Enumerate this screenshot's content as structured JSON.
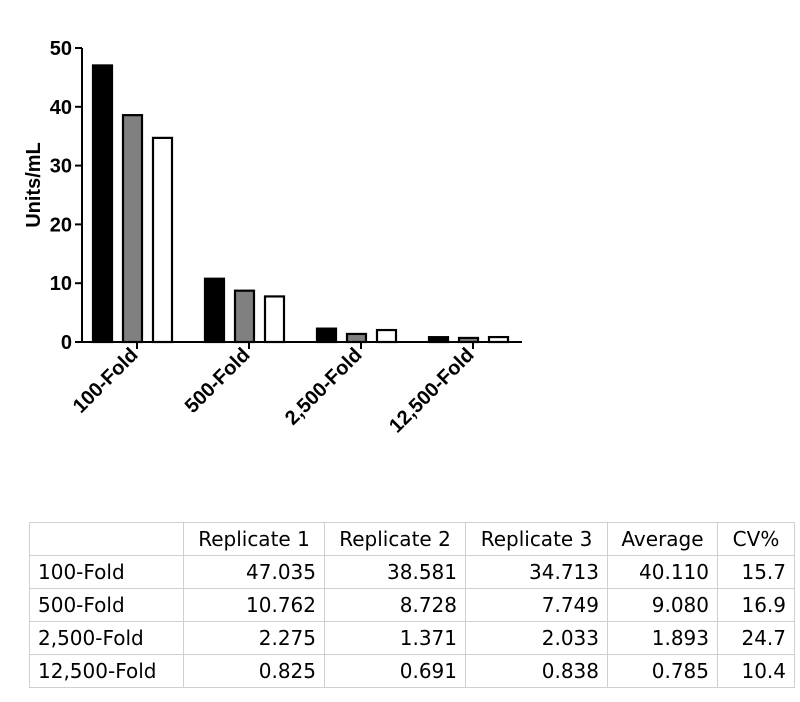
{
  "chart_data": {
    "type": "bar",
    "ylabel": "Units/mL",
    "ylim": [
      0,
      50
    ],
    "yticks": [
      0,
      10,
      20,
      30,
      40,
      50
    ],
    "categories": [
      "100-Fold",
      "500-Fold",
      "2,500-Fold",
      "12,500-Fold"
    ],
    "series": [
      {
        "values": [
          47.035,
          10.762,
          2.275,
          0.825
        ],
        "fill": "#000000"
      },
      {
        "values": [
          38.581,
          8.728,
          1.371,
          0.691
        ],
        "fill": "#808080"
      },
      {
        "values": [
          34.713,
          7.749,
          2.033,
          0.838
        ],
        "fill": "#ffffff"
      }
    ]
  },
  "table": {
    "headers": [
      "",
      "Replicate 1",
      "Replicate 2",
      "Replicate 3",
      "Average",
      "CV%"
    ],
    "rows": [
      [
        "100-Fold",
        "47.035",
        "38.581",
        "34.713",
        "40.110",
        "15.7"
      ],
      [
        "500-Fold",
        "10.762",
        "8.728",
        "7.749",
        "9.080",
        "16.9"
      ],
      [
        "2,500-Fold",
        "2.275",
        "1.371",
        "2.033",
        "1.893",
        "24.7"
      ],
      [
        "12,500-Fold",
        "0.825",
        "0.691",
        "0.838",
        "0.785",
        "10.4"
      ]
    ]
  }
}
